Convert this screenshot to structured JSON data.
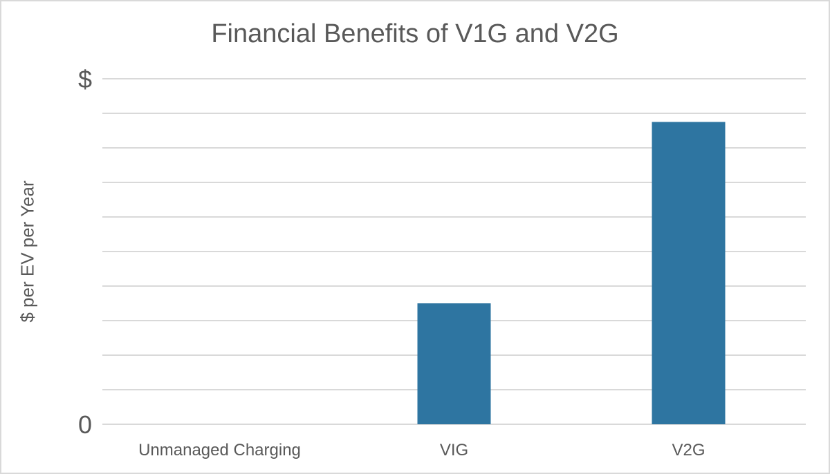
{
  "chart_data": {
    "type": "bar",
    "title": "Financial Benefits of V1G and V2G",
    "xlabel": "",
    "ylabel": "$ per EV per Year",
    "categories": [
      "Unmanaged Charging",
      "VIG",
      "V2G"
    ],
    "values": [
      0,
      3.5,
      8.75
    ],
    "ylim": [
      0,
      10
    ],
    "y_tick_labels": [
      {
        "value": 0,
        "label": "0"
      },
      {
        "value": 10,
        "label": "$"
      }
    ],
    "gridlines": 10,
    "grid": true,
    "bar_color": "#2e75a1",
    "legend": "none"
  }
}
